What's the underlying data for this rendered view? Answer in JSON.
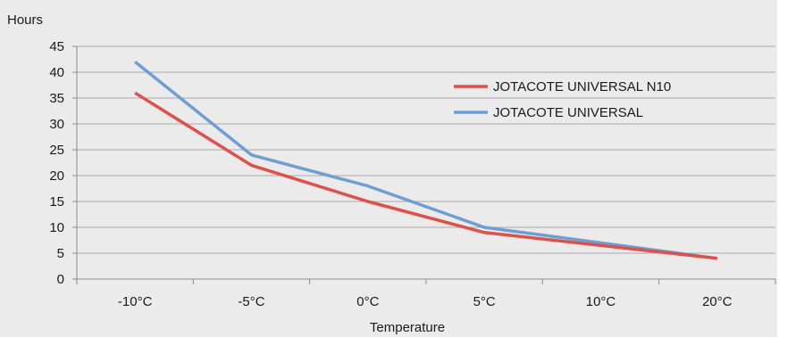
{
  "chart_data": {
    "type": "line",
    "categories": [
      "-10°C",
      "-5°C",
      "0°C",
      "5°C",
      "10°C",
      "20°C"
    ],
    "series": [
      {
        "name": "JOTACOTE UNIVERSAL N10",
        "values": [
          36,
          22,
          15,
          9,
          6.5,
          4
        ],
        "color": "#e0504a"
      },
      {
        "name": "JOTACOTE UNIVERSAL",
        "values": [
          42,
          24,
          18,
          10,
          7,
          4
        ],
        "color": "#6e9fd3"
      }
    ],
    "xlabel": "Temperature",
    "ylabel": "Hours",
    "ylim": [
      0,
      45
    ],
    "yticks": [
      0,
      5,
      10,
      15,
      20,
      25,
      30,
      35,
      40,
      45
    ],
    "grid": true,
    "legend_position": "top-right",
    "colors": {
      "background": "#ebebeb",
      "gridline": "#a9a9a9",
      "axis": "#8c8c8c"
    }
  }
}
